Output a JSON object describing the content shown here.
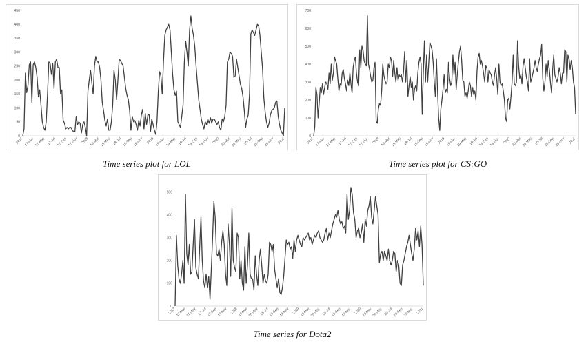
{
  "chart_data": [
    {
      "type": "line",
      "caption": "Time series plot for LOL",
      "ylim": [
        0,
        450
      ],
      "yticks": [
        "0",
        "50",
        "100",
        "150",
        "200",
        "250",
        "300",
        "350",
        "400",
        "450"
      ],
      "xticks": [
        "2017",
        "17-Mar",
        "17-May",
        "17-Jul",
        "17-Sep",
        "17-Nov",
        "2018",
        "18-Mar",
        "18-May",
        "18-Jul",
        "18-Sep",
        "18-Nov",
        "2019",
        "19-Mar",
        "19-May",
        "19-Jul",
        "19-Sep",
        "19-Nov",
        "2020",
        "20-Mar",
        "20-May",
        "20-Jul",
        "20-Sep",
        "20-Nov",
        "2021"
      ],
      "grid": false,
      "color": "#404040",
      "series": [
        {
          "values": [
            0,
            25,
            225,
            155,
            180,
            255,
            265,
            120,
            255,
            265,
            245,
            210,
            140,
            165,
            110,
            50,
            30,
            20,
            50,
            150,
            265,
            260,
            220,
            260,
            170,
            265,
            275,
            245,
            245,
            150,
            165,
            55,
            45,
            25,
            30,
            25,
            30,
            30,
            20,
            15,
            15,
            70,
            40,
            50,
            45,
            10,
            40,
            50,
            30,
            0,
            160,
            200,
            235,
            190,
            150,
            250,
            285,
            265,
            265,
            245,
            200,
            120,
            90,
            55,
            35,
            60,
            20,
            20,
            50,
            110,
            235,
            200,
            130,
            200,
            275,
            270,
            260,
            250,
            210,
            170,
            145,
            130,
            90,
            20,
            70,
            50,
            55,
            40,
            20,
            55,
            35,
            75,
            95,
            25,
            80,
            40,
            75,
            75,
            15,
            60,
            40,
            20,
            5,
            50,
            160,
            230,
            215,
            150,
            270,
            360,
            380,
            390,
            400,
            380,
            300,
            220,
            165,
            145,
            160,
            50,
            40,
            30,
            70,
            110,
            265,
            340,
            300,
            250,
            380,
            430,
            385,
            360,
            320,
            250,
            190,
            130,
            95,
            60,
            40,
            25,
            50,
            40,
            60,
            45,
            65,
            45,
            60,
            60,
            50,
            40,
            50,
            30,
            20,
            60,
            50,
            70,
            110,
            265,
            275,
            300,
            295,
            285,
            210,
            215,
            275,
            245,
            215,
            185,
            170,
            140,
            90,
            30,
            60,
            75,
            150,
            365,
            380,
            370,
            360,
            380,
            400,
            395,
            360,
            300,
            240,
            135,
            85,
            50,
            30,
            45,
            75,
            90,
            95,
            100,
            120,
            125,
            70,
            40,
            20,
            10,
            0,
            100
          ]
        }
      ]
    },
    {
      "type": "line",
      "caption": "Time series plot for CS:GO",
      "ylim": [
        0,
        700
      ],
      "yticks": [
        "0",
        "100",
        "200",
        "300",
        "400",
        "500",
        "600",
        "700"
      ],
      "xticks": [
        "2017",
        "17-Mar",
        "17-May",
        "17-Jul",
        "17-Sep",
        "17-Nov",
        "2018",
        "18-Mar",
        "18-May",
        "18-Jul",
        "18-Sep",
        "18-Nov",
        "2019",
        "19-Mar",
        "19-May",
        "19-Jul",
        "19-Sep",
        "19-Nov",
        "2020",
        "20-Mar",
        "20-May",
        "20-Jul",
        "20-Sep",
        "20-Nov",
        "2021"
      ],
      "grid": false,
      "color": "#404040",
      "series": [
        {
          "values": [
            0,
            50,
            270,
            230,
            100,
            180,
            270,
            240,
            290,
            230,
            270,
            300,
            290,
            260,
            350,
            290,
            400,
            310,
            350,
            440,
            420,
            400,
            320,
            250,
            290,
            280,
            350,
            370,
            320,
            290,
            250,
            310,
            280,
            350,
            290,
            240,
            380,
            420,
            440,
            350,
            300,
            280,
            480,
            380,
            500,
            480,
            420,
            400,
            390,
            670,
            400,
            370,
            330,
            300,
            310,
            380,
            410,
            80,
            70,
            150,
            180,
            170,
            250,
            400,
            340,
            310,
            290,
            300,
            400,
            380,
            440,
            420,
            330,
            420,
            350,
            300,
            380,
            310,
            340,
            330,
            340,
            300,
            360,
            470,
            300,
            420,
            220,
            280,
            330,
            270,
            300,
            200,
            260,
            280,
            250,
            350,
            410,
            440,
            400,
            120,
            350,
            530,
            300,
            450,
            300,
            410,
            520,
            500,
            480,
            410,
            300,
            220,
            430,
            250,
            100,
            30,
            150,
            200,
            260,
            340,
            240,
            260,
            240,
            410,
            320,
            280,
            300,
            450,
            340,
            410,
            260,
            340,
            410,
            470,
            500,
            420,
            310,
            300,
            220,
            240,
            210,
            250,
            300,
            280,
            220,
            270,
            230,
            250,
            200,
            360,
            440,
            460,
            400,
            420,
            390,
            350,
            300,
            390,
            380,
            300,
            370,
            350,
            340,
            300,
            280,
            340,
            380,
            320,
            230,
            400,
            300,
            280,
            290,
            250,
            200,
            100,
            80,
            200,
            210,
            150,
            220,
            300,
            450,
            290,
            280,
            300,
            530,
            390,
            320,
            340,
            290,
            390,
            430,
            380,
            330,
            300,
            250,
            430,
            300,
            320,
            350,
            380,
            420,
            380,
            360,
            400,
            430,
            450,
            510,
            320,
            250,
            300,
            400,
            330,
            420,
            370,
            300,
            240,
            370,
            450,
            340,
            320,
            300,
            330,
            380,
            350,
            290,
            350,
            350,
            480,
            470,
            300,
            450,
            430,
            370,
            420,
            380,
            300,
            270,
            120
          ]
        }
      ]
    },
    {
      "type": "line",
      "caption": "Time series for Dota2",
      "ylim": [
        0,
        550
      ],
      "yticks": [
        "0",
        "100",
        "200",
        "300",
        "400",
        "500"
      ],
      "xticks": [
        "2017",
        "17-Mar",
        "17-May",
        "17-Jul",
        "17-Sep",
        "17-Nov",
        "2018",
        "18-Mar",
        "18-May",
        "18-Jul",
        "18-Sep",
        "18-Nov",
        "2019",
        "19-Mar",
        "19-May",
        "19-Jul",
        "19-Sep",
        "19-Nov",
        "2020",
        "20-Mar",
        "20-May",
        "20-Jul",
        "20-Sep",
        "20-Nov",
        "2021"
      ],
      "grid": false,
      "color": "#404040",
      "series": [
        {
          "values": [
            0,
            310,
            180,
            120,
            100,
            140,
            200,
            100,
            490,
            230,
            180,
            270,
            140,
            150,
            270,
            380,
            170,
            140,
            120,
            260,
            390,
            200,
            110,
            80,
            140,
            80,
            130,
            30,
            160,
            300,
            460,
            390,
            230,
            220,
            250,
            200,
            280,
            330,
            270,
            140,
            90,
            360,
            270,
            130,
            430,
            200,
            170,
            150,
            320,
            300,
            120,
            200,
            100,
            70,
            260,
            100,
            180,
            320,
            140,
            120,
            120,
            70,
            220,
            140,
            90,
            200,
            250,
            180,
            100,
            140,
            110,
            100,
            140,
            280,
            270,
            240,
            270,
            160,
            120,
            80,
            120,
            60,
            50,
            80,
            130,
            210,
            290,
            270,
            280,
            250,
            260,
            210,
            290,
            240,
            290,
            310,
            290,
            270,
            260,
            300,
            290,
            300,
            310,
            320,
            290,
            300,
            270,
            290,
            310,
            300,
            320,
            330,
            300,
            290,
            280,
            290,
            320,
            340,
            290,
            320,
            300,
            330,
            360,
            380,
            400,
            390,
            420,
            380,
            360,
            370,
            340,
            350,
            320,
            490,
            380,
            420,
            520,
            490,
            410,
            380,
            300,
            330,
            340,
            300,
            320,
            360,
            280,
            380,
            350,
            420,
            440,
            480,
            390,
            360,
            420,
            480,
            440,
            400,
            190,
            230,
            240,
            200,
            240,
            220,
            200,
            250,
            200,
            180,
            200,
            240,
            230,
            150,
            200,
            180,
            100,
            90,
            180,
            200,
            230,
            260,
            280,
            310,
            270,
            230,
            200,
            250,
            340,
            290,
            330,
            260,
            350,
            270,
            90
          ]
        }
      ]
    }
  ]
}
